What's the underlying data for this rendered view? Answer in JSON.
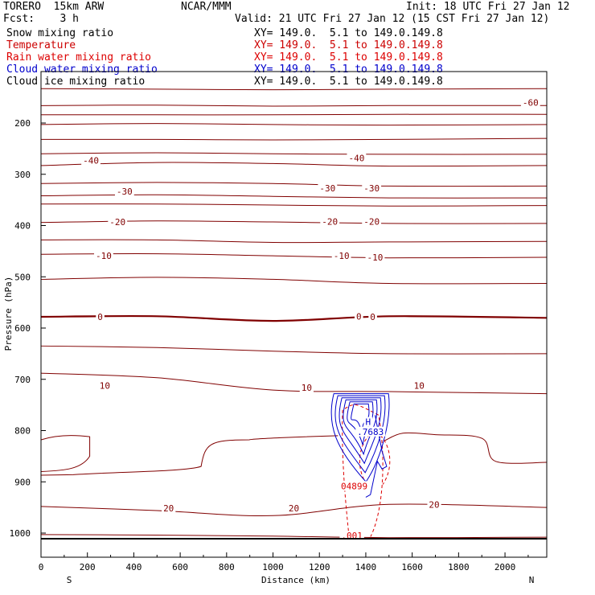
{
  "header": {
    "model": "TORERO  15km ARW",
    "org": "NCAR/MMM",
    "init": "Init: 18 UTC Fri 27 Jan 12",
    "fcst": "Fcst:    3 h",
    "valid": "Valid: 21 UTC Fri 27 Jan 12 (15 CST Fri 27 Jan 12)"
  },
  "legend": [
    {
      "label": "Snow mixing ratio",
      "color": "#000000",
      "xy": "XY= 149.0.  5.1 to 149.0.149.8"
    },
    {
      "label": "Temperature",
      "color": "#cc0000",
      "xy": "XY= 149.0.  5.1 to 149.0.149.8"
    },
    {
      "label": "Rain water mixing ratio",
      "color": "#dd0000",
      "xy": "XY= 149.0.  5.1 to 149.0.149.8"
    },
    {
      "label": "Cloud water mixing ratio",
      "color": "#0000cc",
      "xy": "XY= 149.0.  5.1 to 149.0.149.8"
    },
    {
      "label": "Cloud ice mixing ratio",
      "color": "#000000",
      "xy": "XY= 149.0.  5.1 to 149.0.149.8"
    }
  ],
  "chart_data": {
    "type": "contour-cross-section",
    "xlabel": "Distance (km)",
    "ylabel": "Pressure (hPa)",
    "xlim": [
      0,
      2180
    ],
    "ylim": [
      1050,
      100
    ],
    "x_ticks": [
      0,
      200,
      400,
      600,
      800,
      1000,
      1200,
      1400,
      1600,
      1800,
      2000
    ],
    "y_ticks": [
      200,
      300,
      400,
      500,
      600,
      700,
      800,
      900,
      1000
    ],
    "x_end_labels": {
      "left": "S",
      "right": "N"
    },
    "isotherms": [
      {
        "pressure": [
          133,
          134,
          135,
          134,
          133
        ]
      },
      {
        "pressure": [
          166,
          165,
          167,
          166,
          166
        ]
      },
      {
        "pressure": [
          184,
          184,
          184,
          183,
          183
        ]
      },
      {
        "pressure": [
          203,
          201,
          203,
          204,
          203
        ]
      },
      {
        "pressure": [
          232,
          232,
          233,
          232,
          230
        ]
      },
      {
        "pressure": [
          260,
          258,
          260,
          261,
          261
        ]
      },
      {
        "pressure": [
          283,
          277,
          279,
          284,
          283
        ]
      },
      {
        "pressure": [
          318,
          316,
          318,
          323,
          323
        ]
      },
      {
        "pressure": [
          342,
          340,
          343,
          346,
          346
        ]
      },
      {
        "pressure": [
          358,
          358,
          360,
          362,
          361
        ]
      },
      {
        "pressure": [
          394,
          391,
          393,
          396,
          396
        ]
      },
      {
        "pressure": [
          428,
          428,
          433,
          432,
          431
        ]
      },
      {
        "pressure": [
          456,
          455,
          459,
          463,
          462
        ]
      },
      {
        "pressure": [
          505,
          501,
          505,
          513,
          513
        ]
      },
      {
        "pressure": [
          578,
          577,
          586,
          577,
          580
        ]
      },
      {
        "pressure": [
          635,
          638,
          645,
          650,
          650
        ]
      },
      {
        "pressure": [
          688,
          697,
          721,
          724,
          728
        ]
      },
      {
        "pressure": [
          948,
          956,
          966,
          944,
          950
        ]
      },
      {
        "pressure": [
          1003,
          1004,
          1006,
          1009,
          1008
        ]
      }
    ],
    "isotherm_x": [
      0,
      500,
      1000,
      1500,
      2180
    ],
    "contour_labels": [
      {
        "text": "-60",
        "x": 2110,
        "p": 160,
        "color": "#800000"
      },
      {
        "text": "-40",
        "x": 215,
        "p": 273,
        "color": "#800000"
      },
      {
        "text": "-40",
        "x": 1360,
        "p": 268,
        "color": "#800000"
      },
      {
        "text": "-30",
        "x": 360,
        "p": 333,
        "color": "#800000"
      },
      {
        "text": "-30",
        "x": 1235,
        "p": 327,
        "color": "#800000"
      },
      {
        "text": "-30",
        "x": 1425,
        "p": 327,
        "color": "#800000"
      },
      {
        "text": "-20",
        "x": 330,
        "p": 393,
        "color": "#800000"
      },
      {
        "text": "-20",
        "x": 1245,
        "p": 392,
        "color": "#800000"
      },
      {
        "text": "-20",
        "x": 1425,
        "p": 392,
        "color": "#800000"
      },
      {
        "text": "-10",
        "x": 270,
        "p": 459,
        "color": "#800000"
      },
      {
        "text": "-10",
        "x": 1295,
        "p": 459,
        "color": "#800000"
      },
      {
        "text": "-10",
        "x": 1440,
        "p": 462,
        "color": "#800000"
      },
      {
        "text": "0",
        "x": 255,
        "p": 578,
        "color": "#800000"
      },
      {
        "text": "0",
        "x": 1370,
        "p": 577,
        "color": "#800000"
      },
      {
        "text": "0",
        "x": 1430,
        "p": 578,
        "color": "#800000"
      },
      {
        "text": "10",
        "x": 275,
        "p": 712,
        "color": "#800000"
      },
      {
        "text": "10",
        "x": 1145,
        "p": 716,
        "color": "#800000"
      },
      {
        "text": "10",
        "x": 1630,
        "p": 712,
        "color": "#800000"
      },
      {
        "text": "20",
        "x": 550,
        "p": 951,
        "color": "#800000"
      },
      {
        "text": "20",
        "x": 1090,
        "p": 951,
        "color": "#800000"
      },
      {
        "text": "20",
        "x": 1695,
        "p": 944,
        "color": "#800000"
      },
      {
        "text": "H",
        "x": 1410,
        "p": 783,
        "color": "#0000cc"
      },
      {
        "text": ".7683",
        "x": 1420,
        "p": 802,
        "color": "#0000cc"
      },
      {
        "text": "04899",
        "x": 1350,
        "p": 908,
        "color": "#dd0000"
      },
      {
        "text": ".001",
        "x": 1340,
        "p": 1005,
        "color": "#dd0000"
      }
    ],
    "cloud_water_ring_count": 6,
    "rain_region_km": [
      1300,
      1490
    ],
    "lowest_isotherm_bump_km": [
      0,
      210,
      690,
      1050
    ]
  }
}
